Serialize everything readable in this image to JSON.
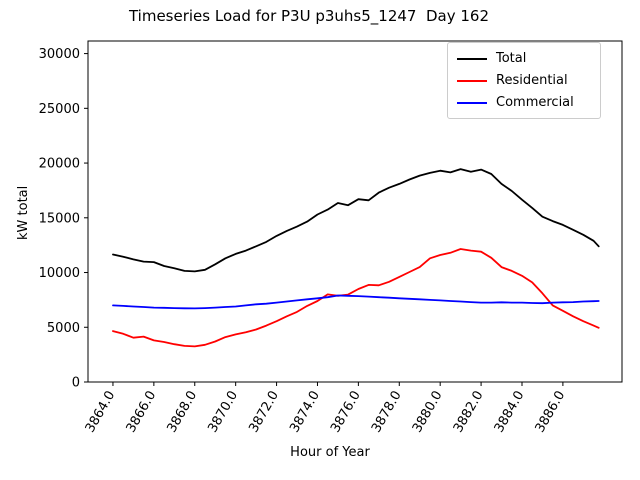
{
  "colors": {
    "background": "#ffffff",
    "axis": "#000000",
    "legend_border": "#cccccc",
    "total": "#000000",
    "residential": "#ff0000",
    "commercial": "#0000ff"
  },
  "chart_data": {
    "type": "line",
    "title": "Timeseries Load for P3U p3uhs5_1247  Day 162",
    "xlabel": "Hour of Year",
    "ylabel": "kW total",
    "grid": false,
    "legend_position": "upper right",
    "xlim": [
      3862.78,
      3888.89
    ],
    "ylim": [
      0,
      31150
    ],
    "xticks": [
      3864,
      3866,
      3868,
      3870,
      3872,
      3874,
      3876,
      3878,
      3880,
      3882,
      3884,
      3886
    ],
    "xtick_labels": [
      "3864.0",
      "3866.0",
      "3868.0",
      "3870.0",
      "3872.0",
      "3874.0",
      "3876.0",
      "3878.0",
      "3880.0",
      "3882.0",
      "3884.0",
      "3886.0"
    ],
    "yticks": [
      0,
      5000,
      10000,
      15000,
      20000,
      25000,
      30000
    ],
    "x": [
      3864.0,
      3864.5,
      3865.0,
      3865.5,
      3866.0,
      3866.5,
      3867.0,
      3867.5,
      3868.0,
      3868.5,
      3869.0,
      3869.5,
      3870.0,
      3870.5,
      3871.0,
      3871.5,
      3872.0,
      3872.5,
      3873.0,
      3873.5,
      3874.0,
      3874.5,
      3875.0,
      3875.5,
      3876.0,
      3876.5,
      3877.0,
      3877.5,
      3878.0,
      3878.5,
      3879.0,
      3879.5,
      3880.0,
      3880.5,
      3881.0,
      3881.5,
      3882.0,
      3882.5,
      3883.0,
      3883.5,
      3884.0,
      3884.5,
      3885.0,
      3885.5,
      3886.0,
      3886.5,
      3887.0,
      3887.5,
      3887.75
    ],
    "series": [
      {
        "name": "Total",
        "color": "#000000",
        "values": [
          11650,
          11450,
          11200,
          11000,
          10950,
          10600,
          10400,
          10150,
          10100,
          10250,
          10750,
          11300,
          11700,
          12000,
          12400,
          12800,
          13350,
          13800,
          14200,
          14650,
          15300,
          15750,
          16350,
          16150,
          16700,
          16600,
          17300,
          17750,
          18100,
          18500,
          18850,
          19100,
          19300,
          19150,
          19450,
          19200,
          19400,
          19000,
          18100,
          17450,
          16650,
          15900,
          15100,
          14700,
          14350,
          13900,
          13450,
          12900,
          12400
        ]
      },
      {
        "name": "Residential",
        "color": "#ff0000",
        "values": [
          4650,
          4400,
          4050,
          4150,
          3800,
          3650,
          3450,
          3300,
          3250,
          3400,
          3700,
          4100,
          4350,
          4550,
          4800,
          5150,
          5550,
          6000,
          6400,
          6950,
          7400,
          8000,
          7870,
          7980,
          8500,
          8870,
          8830,
          9150,
          9600,
          10050,
          10500,
          11300,
          11600,
          11800,
          12150,
          12000,
          11900,
          11350,
          10500,
          10150,
          9700,
          9100,
          8100,
          7000,
          6500,
          6000,
          5550,
          5150,
          4950
        ]
      },
      {
        "name": "Commercial",
        "color": "#0000ff",
        "values": [
          7000,
          6950,
          6900,
          6850,
          6800,
          6780,
          6750,
          6730,
          6720,
          6750,
          6800,
          6850,
          6900,
          7000,
          7100,
          7150,
          7250,
          7350,
          7450,
          7550,
          7650,
          7750,
          7900,
          7870,
          7850,
          7800,
          7750,
          7700,
          7650,
          7600,
          7550,
          7500,
          7450,
          7400,
          7350,
          7300,
          7250,
          7250,
          7280,
          7250,
          7250,
          7220,
          7200,
          7250,
          7280,
          7300,
          7350,
          7380,
          7400
        ]
      }
    ]
  }
}
